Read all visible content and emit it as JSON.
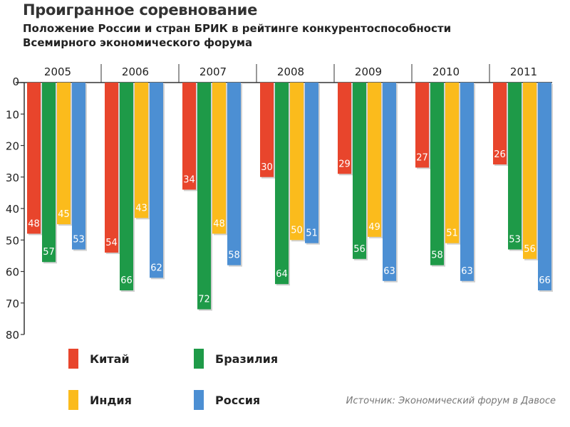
{
  "title": "Проигранное соревнование",
  "subtitle_line1": "Положение России и стран БРИК в рейтинге конкурентоспособности",
  "subtitle_line2": "Всемирного экономического форума",
  "source": "Источник: Экономический форум в Давосе",
  "colors": {
    "china": "#e8452c",
    "brazil": "#1e9a48",
    "india": "#fbbb1c",
    "russia": "#4c8fd3"
  },
  "legend": [
    {
      "name": "Китай",
      "color": "#e8452c"
    },
    {
      "name": "Бразилия",
      "color": "#1e9a48"
    },
    {
      "name": "Индия",
      "color": "#fbbb1c"
    },
    {
      "name": "Россия",
      "color": "#4c8fd3"
    }
  ],
  "chart_data": {
    "type": "bar",
    "title": "Проигранное соревнование",
    "categories": [
      "2005",
      "2006",
      "2007",
      "2008",
      "2009",
      "2010",
      "2011"
    ],
    "ylim": [
      0,
      80
    ],
    "yticks": [
      0,
      10,
      20,
      30,
      40,
      50,
      60,
      70,
      80
    ],
    "y_inverted": true,
    "series": [
      {
        "name": "Китай",
        "color": "#e8452c",
        "values": [
          48,
          54,
          34,
          30,
          29,
          27,
          26
        ]
      },
      {
        "name": "Бразилия",
        "color": "#1e9a48",
        "values": [
          57,
          66,
          72,
          64,
          56,
          58,
          53
        ]
      },
      {
        "name": "Индия",
        "color": "#fbbb1c",
        "values": [
          45,
          43,
          48,
          50,
          49,
          51,
          56
        ]
      },
      {
        "name": "Россия",
        "color": "#4c8fd3",
        "values": [
          53,
          62,
          58,
          51,
          63,
          63,
          66
        ]
      }
    ]
  }
}
